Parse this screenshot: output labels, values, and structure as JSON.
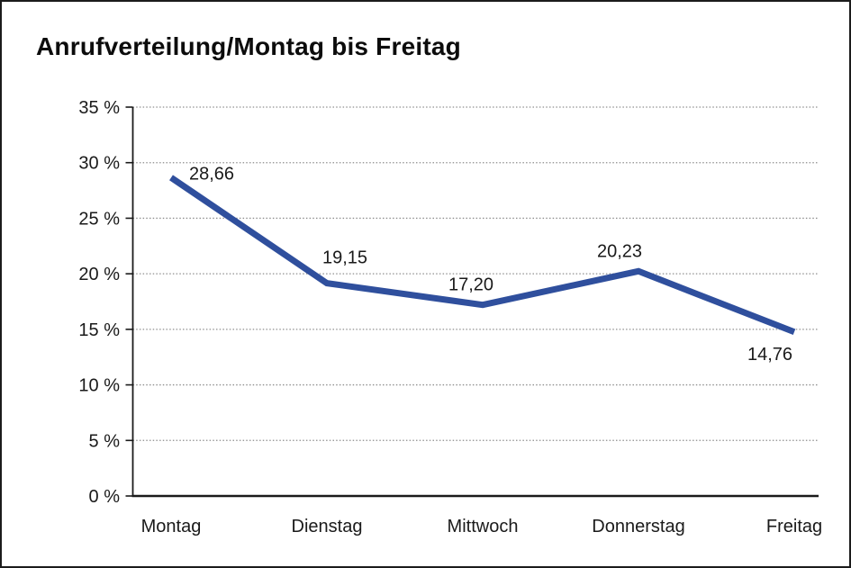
{
  "window": {
    "background": "#ffffff",
    "border_color": "#1c1c1c"
  },
  "chart_data": {
    "type": "line",
    "title": "Anrufverteilung/Montag bis Freitag",
    "categories": [
      "Montag",
      "Dienstag",
      "Mittwoch",
      "Donnerstag",
      "Freitag"
    ],
    "series": [
      {
        "name": "Anrufverteilung",
        "values": [
          28.66,
          19.15,
          17.2,
          20.23,
          14.76
        ]
      }
    ],
    "point_labels": [
      "28,66",
      "19,15",
      "17,20",
      "20,23",
      "14,76"
    ],
    "y_ticks": [
      {
        "label": "35 %",
        "value": 35
      },
      {
        "label": "30 %",
        "value": 30
      },
      {
        "label": "25 %",
        "value": 25
      },
      {
        "label": "20 %",
        "value": 20
      },
      {
        "label": "15 %",
        "value": 15
      },
      {
        "label": "10 %",
        "value": 10
      },
      {
        "label": "5 %",
        "value": 5
      },
      {
        "label": "0 %",
        "value": 0
      }
    ],
    "ylim": [
      0,
      35
    ],
    "xlabel": "",
    "ylabel": "",
    "grid": "horizontal-dotted",
    "legend": "none",
    "colors": {
      "line": "#2f4f9d",
      "axis": "#1a1a1a",
      "grid": "#8f8f8f",
      "text": "#1a1a1a"
    }
  }
}
